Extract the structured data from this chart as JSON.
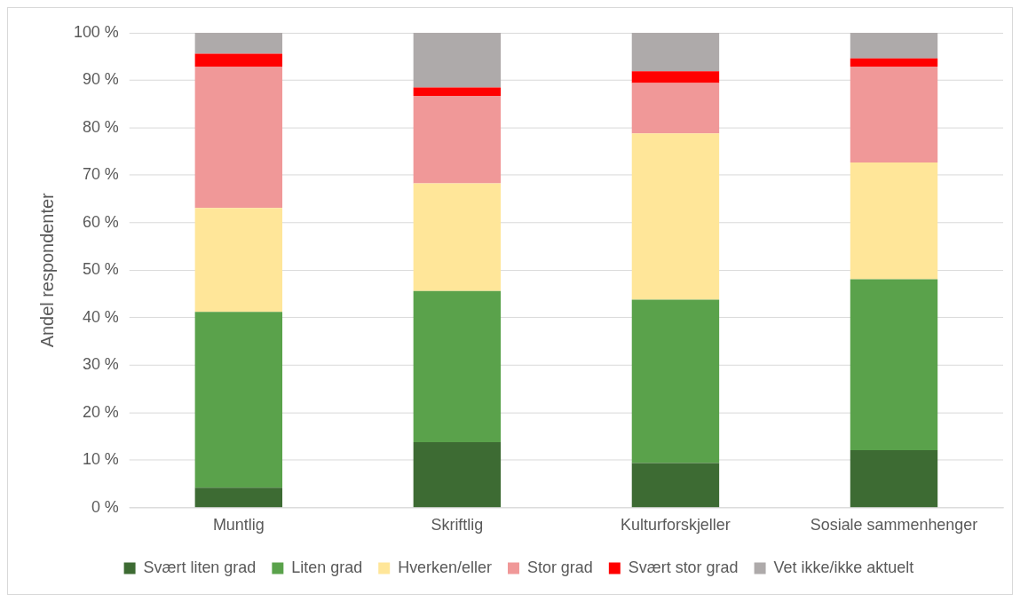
{
  "chart_data": {
    "type": "bar",
    "stacked": true,
    "ylabel": "Andel respondenter",
    "categories": [
      "Muntlig",
      "Skriftlig",
      "Kulturforskjeller",
      "Sosiale sammenhenger"
    ],
    "series": [
      {
        "name": "Svært liten grad",
        "color": "#3d6b33",
        "values": [
          4.2,
          13.8,
          9.4,
          12.1
        ]
      },
      {
        "name": "Liten grad",
        "color": "#5aa24b",
        "values": [
          37.0,
          31.8,
          34.4,
          36.0
        ]
      },
      {
        "name": "Hverken/eller",
        "color": "#ffe699",
        "values": [
          21.9,
          22.7,
          35.0,
          24.6
        ]
      },
      {
        "name": "Stor grad",
        "color": "#f09898",
        "values": [
          29.8,
          18.4,
          10.6,
          20.2
        ]
      },
      {
        "name": "Svært stor grad",
        "color": "#ff0000",
        "values": [
          2.7,
          1.8,
          2.5,
          1.7
        ]
      },
      {
        "name": "Vet ikke/ikke aktuelt",
        "color": "#aeaaaa",
        "values": [
          4.4,
          11.5,
          8.1,
          5.4
        ]
      }
    ],
    "ylim": [
      0,
      100
    ],
    "yticks": [
      {
        "value": 0,
        "label": "0 %"
      },
      {
        "value": 10,
        "label": "10 %"
      },
      {
        "value": 20,
        "label": "20 %"
      },
      {
        "value": 30,
        "label": "30 %"
      },
      {
        "value": 40,
        "label": "40 %"
      },
      {
        "value": 50,
        "label": "50 %"
      },
      {
        "value": 60,
        "label": "60 %"
      },
      {
        "value": 70,
        "label": "70 %"
      },
      {
        "value": 80,
        "label": "80 %"
      },
      {
        "value": 90,
        "label": "90 %"
      },
      {
        "value": 100,
        "label": "100 %"
      }
    ],
    "grid": "y",
    "legend": "bottom"
  }
}
